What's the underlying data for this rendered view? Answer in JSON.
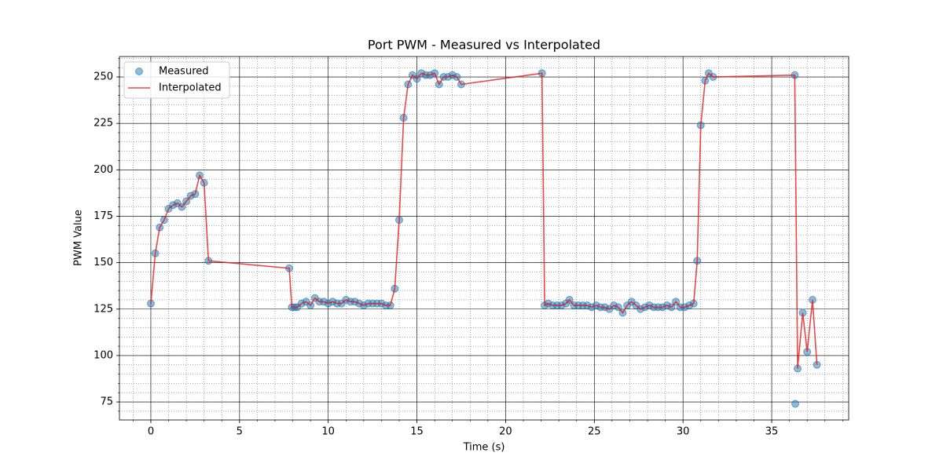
{
  "chart_data": {
    "type": "line",
    "title": "Port PWM - Measured vs Interpolated",
    "x_label": "Time (s)",
    "y_label": "PWM Value",
    "xlim": [
      -1.77,
      39.34
    ],
    "ylim": [
      65.3,
      261
    ],
    "xticks": [
      0,
      5,
      10,
      15,
      20,
      25,
      30,
      35
    ],
    "yticks": [
      75,
      100,
      125,
      150,
      175,
      200,
      225,
      250
    ],
    "grid": true,
    "minor_xstep": 1,
    "minor_ystep": 5,
    "legend": "upper left",
    "series": [
      {
        "name": "Measured",
        "kind": "scatter",
        "color": "#1f77b4",
        "x": [
          0,
          0.25,
          0.5,
          0.75,
          1.0,
          1.25,
          1.5,
          1.75,
          2.0,
          2.25,
          2.5,
          2.75,
          3.0,
          3.25,
          7.8,
          7.95,
          8.1,
          8.25,
          8.5,
          8.75,
          9.0,
          9.25,
          9.5,
          9.75,
          10.0,
          10.25,
          10.5,
          10.75,
          11.0,
          11.25,
          11.5,
          11.75,
          12.0,
          12.25,
          12.5,
          12.75,
          13.0,
          13.25,
          13.5,
          13.75,
          14.0,
          14.25,
          14.5,
          14.75,
          15.0,
          15.25,
          15.5,
          15.75,
          16.0,
          16.25,
          16.5,
          16.75,
          17.0,
          17.25,
          17.5,
          22.05,
          22.2,
          22.4,
          22.65,
          22.9,
          23.15,
          23.4,
          23.6,
          23.85,
          24.1,
          24.35,
          24.6,
          24.85,
          25.1,
          25.35,
          25.6,
          25.85,
          26.1,
          26.35,
          26.6,
          26.85,
          27.1,
          27.35,
          27.6,
          27.85,
          28.1,
          28.35,
          28.6,
          28.85,
          29.1,
          29.35,
          29.6,
          29.85,
          30.1,
          30.35,
          30.6,
          30.8,
          31.0,
          31.25,
          31.45,
          31.7,
          36.3,
          36.33,
          36.46,
          36.75,
          37.0,
          37.3,
          37.55
        ],
        "values": [
          128,
          155,
          169,
          173,
          179,
          181,
          182,
          180,
          183,
          186,
          187,
          197,
          193,
          151,
          147,
          126,
          126,
          126,
          128,
          129,
          127,
          131,
          129,
          129,
          128,
          129,
          128,
          128,
          130,
          129,
          129,
          128,
          127,
          128,
          128,
          128,
          128,
          127,
          127,
          136,
          173,
          228,
          246,
          251,
          249,
          252,
          251,
          251,
          252,
          246,
          250,
          250,
          251,
          250,
          246,
          252,
          127,
          128,
          127,
          127,
          127,
          128,
          130,
          127,
          127,
          127,
          127,
          126,
          127,
          126,
          126,
          125,
          127,
          126,
          123,
          127,
          129,
          127,
          125,
          126,
          127,
          126,
          126,
          126,
          127,
          126,
          129,
          126,
          126,
          127,
          128,
          151,
          224,
          248,
          252,
          250,
          251,
          74,
          93,
          123,
          102,
          130,
          95
        ]
      },
      {
        "name": "Interpolated",
        "kind": "line",
        "color": "#e41a1c",
        "x": [
          0,
          0.25,
          0.5,
          0.75,
          1.0,
          1.25,
          1.5,
          1.75,
          2.0,
          2.25,
          2.5,
          2.75,
          3.0,
          3.25,
          7.8,
          7.95,
          8.1,
          8.25,
          8.5,
          8.75,
          9.0,
          9.25,
          9.5,
          9.75,
          10.0,
          10.25,
          10.5,
          10.75,
          11.0,
          11.25,
          11.5,
          11.75,
          12.0,
          12.25,
          12.5,
          12.75,
          13.0,
          13.25,
          13.5,
          13.75,
          14.0,
          14.25,
          14.5,
          14.75,
          15.0,
          15.25,
          15.5,
          15.75,
          16.0,
          16.25,
          16.5,
          16.75,
          17.0,
          17.25,
          17.5,
          22.05,
          22.2,
          22.4,
          22.65,
          22.9,
          23.15,
          23.4,
          23.6,
          23.85,
          24.1,
          24.35,
          24.6,
          24.85,
          25.1,
          25.35,
          25.6,
          25.85,
          26.1,
          26.35,
          26.6,
          26.85,
          27.1,
          27.35,
          27.6,
          27.85,
          28.1,
          28.35,
          28.6,
          28.85,
          29.1,
          29.35,
          29.6,
          29.85,
          30.1,
          30.35,
          30.6,
          30.8,
          31.0,
          31.25,
          31.45,
          31.7,
          36.3,
          36.46,
          36.75,
          37.0,
          37.3,
          37.55
        ],
        "values": [
          128,
          155,
          169,
          173,
          179,
          181,
          182,
          180,
          183,
          186,
          187,
          197,
          193,
          151,
          147,
          126,
          126,
          126,
          128,
          129,
          127,
          131,
          129,
          129,
          128,
          129,
          128,
          128,
          130,
          129,
          129,
          128,
          127,
          128,
          128,
          128,
          128,
          127,
          127,
          136,
          173,
          228,
          246,
          251,
          249,
          252,
          251,
          251,
          252,
          246,
          250,
          250,
          251,
          250,
          246,
          252,
          127,
          128,
          127,
          127,
          127,
          128,
          130,
          127,
          127,
          127,
          127,
          126,
          127,
          126,
          126,
          125,
          127,
          126,
          123,
          127,
          129,
          127,
          125,
          126,
          127,
          126,
          126,
          126,
          127,
          126,
          129,
          126,
          126,
          127,
          128,
          151,
          224,
          248,
          252,
          250,
          251,
          93,
          123,
          102,
          130,
          95
        ]
      }
    ]
  }
}
